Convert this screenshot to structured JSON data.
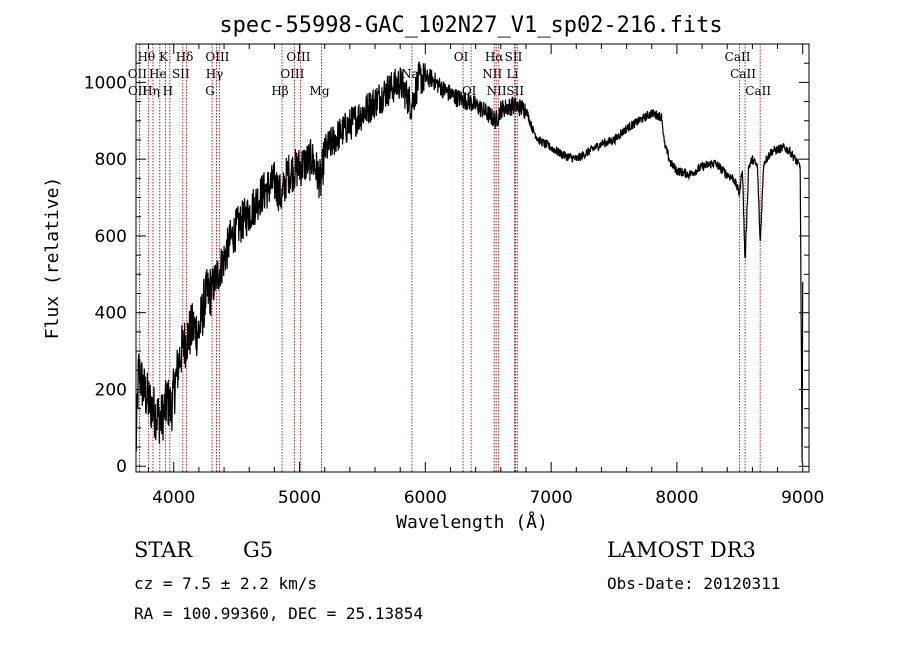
{
  "chart_data": {
    "type": "line",
    "title": "spec-55998-GAC_102N27_V1_sp02-216.fits",
    "xlabel": "Wavelength (Å)",
    "ylabel": "Flux (relative)",
    "xlim": [
      3700,
      9050
    ],
    "ylim": [
      -15,
      1100
    ],
    "xticks": [
      4000,
      5000,
      6000,
      7000,
      8000,
      9000
    ],
    "yticks": [
      0,
      200,
      400,
      600,
      800,
      1000
    ],
    "series": [
      {
        "name": "flux",
        "anchors": [
          [
            3700,
            40
          ],
          [
            3720,
            250
          ],
          [
            3760,
            200
          ],
          [
            3800,
            170
          ],
          [
            3850,
            140
          ],
          [
            3900,
            120
          ],
          [
            3950,
            170
          ],
          [
            3980,
            150
          ],
          [
            4000,
            190
          ],
          [
            4050,
            290
          ],
          [
            4100,
            330
          ],
          [
            4150,
            360
          ],
          [
            4200,
            350
          ],
          [
            4250,
            440
          ],
          [
            4300,
            460
          ],
          [
            4350,
            500
          ],
          [
            4400,
            540
          ],
          [
            4450,
            590
          ],
          [
            4500,
            620
          ],
          [
            4600,
            660
          ],
          [
            4700,
            710
          ],
          [
            4800,
            740
          ],
          [
            4860,
            700
          ],
          [
            4900,
            760
          ],
          [
            5000,
            780
          ],
          [
            5100,
            800
          ],
          [
            5170,
            740
          ],
          [
            5200,
            820
          ],
          [
            5300,
            860
          ],
          [
            5400,
            890
          ],
          [
            5500,
            920
          ],
          [
            5600,
            950
          ],
          [
            5700,
            980
          ],
          [
            5800,
            1000
          ],
          [
            5890,
            940
          ],
          [
            5950,
            1010
          ],
          [
            6050,
            1010
          ],
          [
            6150,
            980
          ],
          [
            6250,
            960
          ],
          [
            6350,
            950
          ],
          [
            6450,
            930
          ],
          [
            6563,
            900
          ],
          [
            6600,
            930
          ],
          [
            6700,
            940
          ],
          [
            6800,
            930
          ],
          [
            6850,
            880
          ],
          [
            6900,
            850
          ],
          [
            7000,
            830
          ],
          [
            7100,
            810
          ],
          [
            7200,
            800
          ],
          [
            7300,
            820
          ],
          [
            7400,
            840
          ],
          [
            7500,
            850
          ],
          [
            7600,
            880
          ],
          [
            7700,
            900
          ],
          [
            7800,
            920
          ],
          [
            7880,
            910
          ],
          [
            7900,
            840
          ],
          [
            7950,
            790
          ],
          [
            8000,
            770
          ],
          [
            8100,
            760
          ],
          [
            8200,
            780
          ],
          [
            8300,
            790
          ],
          [
            8400,
            760
          ],
          [
            8450,
            750
          ],
          [
            8498,
            710
          ],
          [
            8520,
            780
          ],
          [
            8542,
            530
          ],
          [
            8570,
            780
          ],
          [
            8600,
            800
          ],
          [
            8640,
            780
          ],
          [
            8662,
            580
          ],
          [
            8690,
            790
          ],
          [
            8750,
            820
          ],
          [
            8850,
            830
          ],
          [
            8900,
            820
          ],
          [
            8980,
            780
          ],
          [
            8995,
            10
          ],
          [
            9000,
            480
          ]
        ]
      }
    ],
    "line_markers": [
      {
        "label": "Hθ",
        "wavelength": 3798,
        "row": 1
      },
      {
        "label": "OII",
        "wavelength": 3727,
        "row": 2
      },
      {
        "label": "OII",
        "wavelength": 3729,
        "row": 3
      },
      {
        "label": "Hη",
        "wavelength": 3835,
        "row": 3
      },
      {
        "label": "He",
        "wavelength": 3889,
        "row": 2
      },
      {
        "label": "K",
        "wavelength": 3934,
        "row": 1
      },
      {
        "label": "H",
        "wavelength": 3969,
        "row": 3
      },
      {
        "label": "SII",
        "wavelength": 4072,
        "row": 2
      },
      {
        "label": "Hδ",
        "wavelength": 4102,
        "row": 1
      },
      {
        "label": "OIII",
        "wavelength": 4363,
        "row": 1
      },
      {
        "label": "Hγ",
        "wavelength": 4340,
        "row": 2
      },
      {
        "label": "G",
        "wavelength": 4305,
        "row": 3
      },
      {
        "label": "Hβ",
        "wavelength": 4861,
        "row": 3
      },
      {
        "label": "OIII",
        "wavelength": 4959,
        "row": 2
      },
      {
        "label": "OIII",
        "wavelength": 5007,
        "row": 1
      },
      {
        "label": "Mg",
        "wavelength": 5175,
        "row": 3
      },
      {
        "label": "Na",
        "wavelength": 5893,
        "row": 2
      },
      {
        "label": "OI",
        "wavelength": 6300,
        "row": 1
      },
      {
        "label": "OI",
        "wavelength": 6364,
        "row": 3
      },
      {
        "label": "Hα",
        "wavelength": 6563,
        "row": 1
      },
      {
        "label": "NII",
        "wavelength": 6548,
        "row": 2
      },
      {
        "label": "NII",
        "wavelength": 6583,
        "row": 3
      },
      {
        "label": "SII",
        "wavelength": 6717,
        "row": 1
      },
      {
        "label": "Li",
        "wavelength": 6708,
        "row": 2
      },
      {
        "label": "SII",
        "wavelength": 6731,
        "row": 3
      },
      {
        "label": "CaII",
        "wavelength": 8498,
        "row": 1
      },
      {
        "label": "CaII",
        "wavelength": 8542,
        "row": 2
      },
      {
        "label": "CaII",
        "wavelength": 8662,
        "row": 3
      }
    ],
    "line_marker_color": "#b22222",
    "line_color": "#000000"
  },
  "info": {
    "class": "STAR",
    "subclass": "G5",
    "survey": "LAMOST DR3",
    "cz": "cz = 7.5 ± 2.2 km/s",
    "obs_date": "Obs-Date: 20120311",
    "coords": "RA = 100.99360, DEC =  25.13854"
  }
}
